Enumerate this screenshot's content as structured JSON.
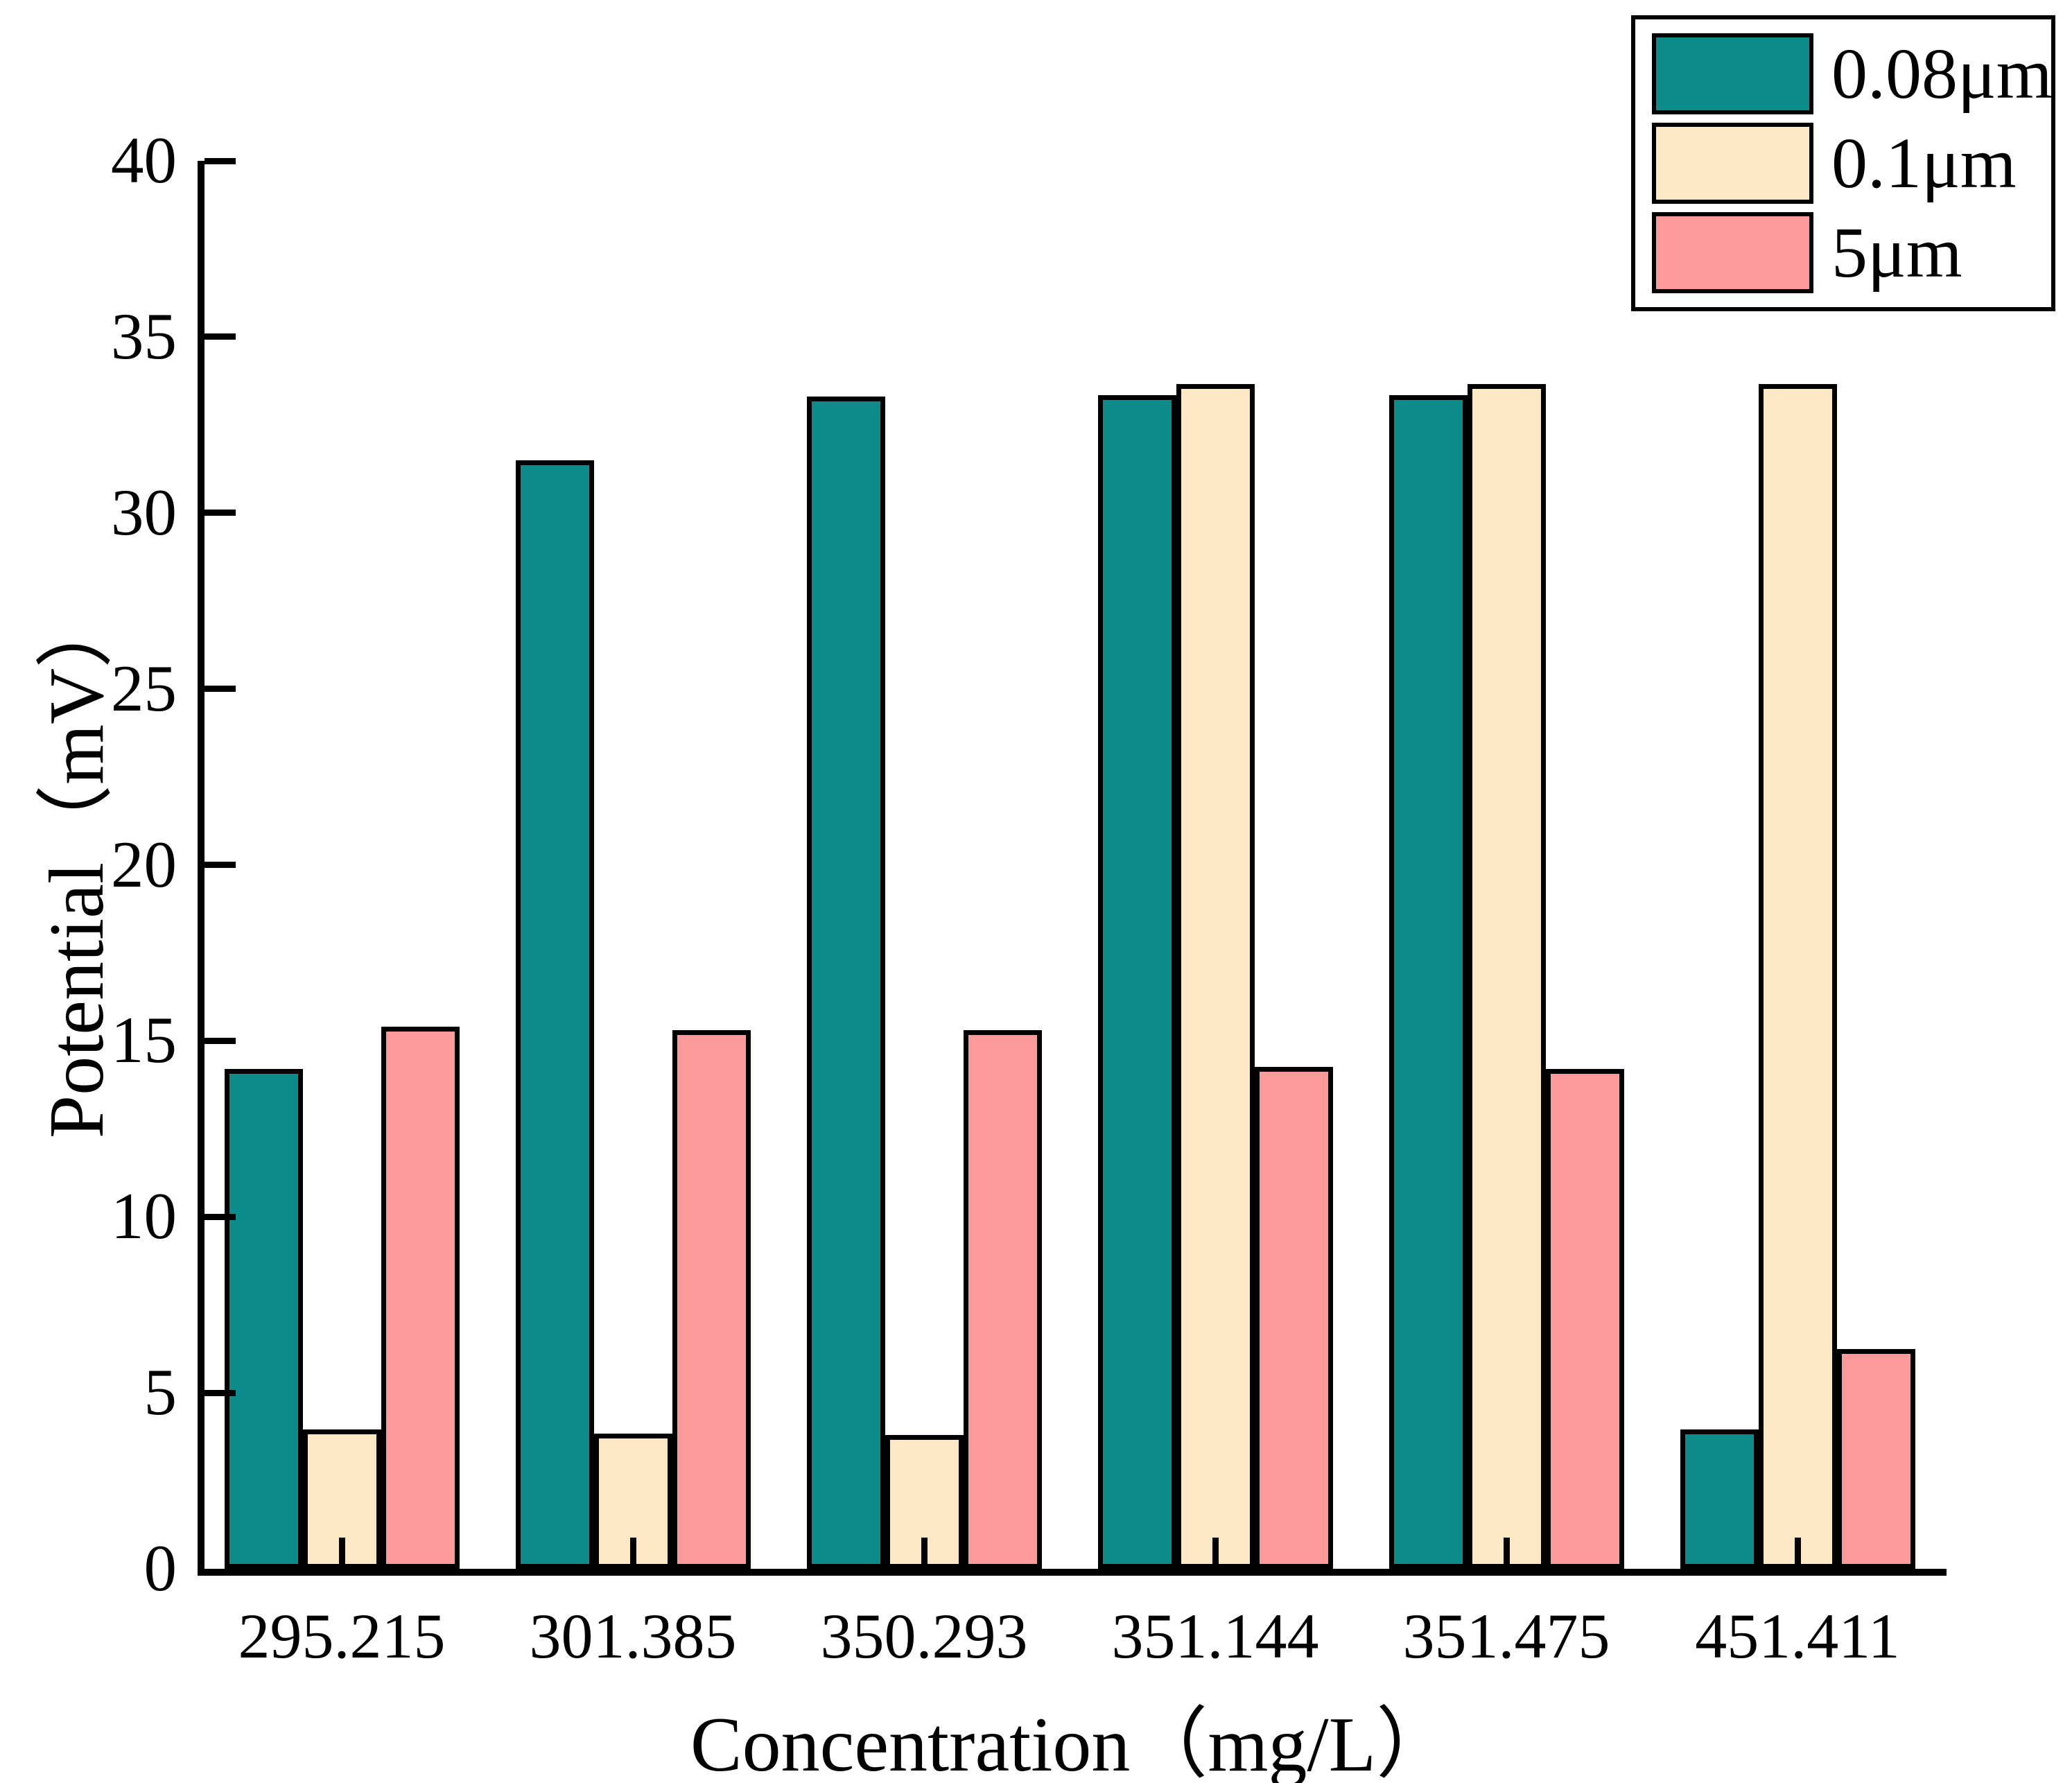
{
  "chart_data": {
    "type": "bar",
    "title": "",
    "xlabel": "Concentration（mg/L）",
    "ylabel": "Potential（mV）",
    "categories": [
      "295.215",
      "301.385",
      "350.293",
      "351.144",
      "351.475",
      "451.411"
    ],
    "series": [
      {
        "name": "0.08μm",
        "color": "#0b8c8a",
        "values": [
          14.2,
          31.5,
          33.3,
          33.35,
          33.35,
          3.95
        ]
      },
      {
        "name": "0.1μm",
        "color": "#fce8c4",
        "values": [
          3.95,
          3.85,
          3.8,
          33.65,
          33.65,
          33.65
        ]
      },
      {
        "name": "5μm",
        "color": "#fb9a98",
        "values": [
          15.4,
          15.3,
          15.3,
          14.25,
          14.2,
          6.25
        ]
      }
    ],
    "ylim": [
      0,
      40
    ],
    "yticks": [
      0,
      5,
      10,
      15,
      20,
      25,
      30,
      35,
      40
    ],
    "grid": false,
    "legend_position": "top-right",
    "bar_border_color": "#000000",
    "axis_color": "#000000"
  }
}
